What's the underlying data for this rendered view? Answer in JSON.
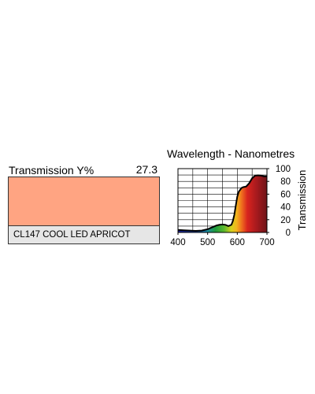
{
  "filter": {
    "transmission_label": "Transmission Y%",
    "transmission_value": "27.3",
    "name": "CL147 COOL LED APRICOT",
    "swatch_color": "#ffa482",
    "name_box_color": "#e6e6e6"
  },
  "chart_data": {
    "type": "area",
    "title": "Wavelength - Nanometres",
    "xlabel": "",
    "ylabel": "Transmission",
    "xlim": [
      400,
      700
    ],
    "ylim": [
      0,
      100
    ],
    "x_ticks": [
      400,
      500,
      600,
      700
    ],
    "y_ticks": [
      0,
      20,
      40,
      60,
      80,
      100
    ],
    "grid": true,
    "series": [
      {
        "x": [
          400,
          420,
          440,
          460,
          480,
          500,
          510,
          520,
          530,
          540,
          550,
          560,
          570,
          580,
          585,
          590,
          595,
          600,
          605,
          610,
          615,
          620,
          630,
          640,
          650,
          660,
          670,
          680,
          690,
          700
        ],
        "y": [
          4,
          3.5,
          3,
          2.5,
          3,
          5,
          7,
          9,
          11,
          12,
          12.5,
          12,
          10,
          12,
          18,
          28,
          42,
          56,
          64,
          67,
          70,
          71,
          72,
          77,
          85,
          89,
          89.5,
          89,
          88,
          88
        ]
      }
    ]
  }
}
